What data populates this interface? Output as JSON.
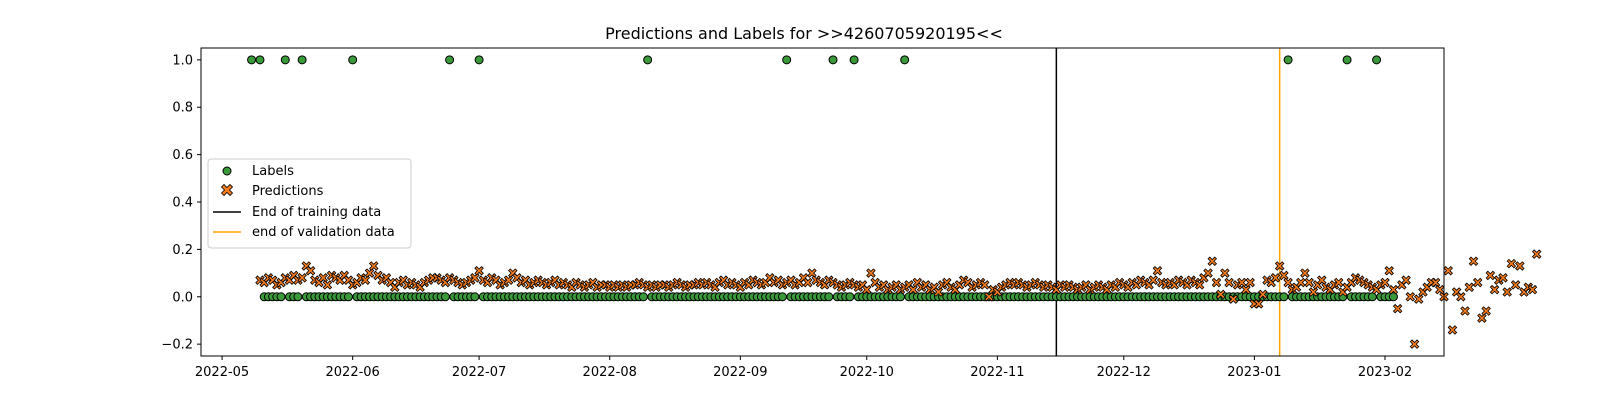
{
  "chart_data": {
    "type": "scatter",
    "title": "Predictions and Labels for >>4260705920195<<",
    "xlabel": "",
    "ylabel": "",
    "x_range": [
      "2022-04-26",
      "2023-02-15"
    ],
    "ylim": [
      -0.25,
      1.05
    ],
    "x_ticks": [
      "2022-05",
      "2022-06",
      "2022-07",
      "2022-08",
      "2022-09",
      "2022-10",
      "2022-11",
      "2022-12",
      "2023-01",
      "2023-02"
    ],
    "x_tick_dates": [
      "2022-05-01",
      "2022-06-01",
      "2022-07-01",
      "2022-08-01",
      "2022-09-01",
      "2022-10-01",
      "2022-11-01",
      "2022-12-01",
      "2023-01-01",
      "2023-02-01"
    ],
    "y_ticks": [
      "−0.2",
      "0.0",
      "0.2",
      "0.4",
      "0.6",
      "0.8",
      "1.0"
    ],
    "y_tick_values": [
      -0.2,
      0.0,
      0.2,
      0.4,
      0.6,
      0.8,
      1.0
    ],
    "grid": false,
    "legend_position": "center-left",
    "legend": [
      "Labels",
      "Predictions",
      "End of training data",
      "end of validation data"
    ],
    "colors": {
      "labels_fill": "#3a9a3a",
      "predictions_fill": "#f57c1f",
      "marker_edge": "#000000",
      "training_line": "#000000",
      "validation_line": "#ffa500"
    },
    "date_range": {
      "start": "2022-05-10",
      "end": "2023-02-03"
    },
    "label_ones": [
      "2022-05-08",
      "2022-05-10",
      "2022-05-16",
      "2022-05-20",
      "2022-06-01",
      "2022-06-24",
      "2022-07-01",
      "2022-08-10",
      "2022-09-12",
      "2022-09-23",
      "2022-09-28",
      "2022-10-10",
      "2023-01-09",
      "2023-01-23",
      "2023-01-30"
    ],
    "predictions_train": [
      0.07,
      0.06,
      0.08,
      0.07,
      0.05,
      0.06,
      0.08,
      0.07,
      0.09,
      0.07,
      0.08,
      0.13,
      0.11,
      0.07,
      0.06,
      0.08,
      0.05,
      0.09,
      0.08,
      0.07,
      0.09,
      0.07,
      0.05,
      0.06,
      0.08,
      0.07,
      0.1,
      0.13,
      0.09,
      0.07,
      0.08,
      0.06,
      0.04,
      0.06,
      0.07,
      0.05,
      0.06,
      0.05,
      0.04,
      0.06,
      0.07,
      0.08,
      0.08,
      0.07,
      0.06,
      0.08,
      0.07,
      0.06,
      0.05,
      0.06,
      0.07,
      0.08,
      0.11,
      0.07,
      0.06,
      0.08,
      0.07,
      0.05,
      0.06,
      0.07,
      0.1,
      0.08,
      0.06,
      0.07,
      0.05,
      0.06,
      0.07,
      0.06,
      0.05,
      0.06,
      0.07,
      0.05,
      0.06,
      0.05,
      0.04,
      0.06,
      0.05,
      0.04,
      0.05,
      0.06,
      0.04,
      0.05,
      0.05,
      0.04,
      0.05,
      0.04,
      0.05,
      0.04,
      0.05,
      0.05,
      0.06,
      0.05,
      0.04,
      0.05,
      0.04,
      0.05,
      0.05,
      0.04,
      0.05,
      0.06,
      0.05,
      0.04,
      0.05,
      0.05,
      0.06,
      0.05,
      0.06,
      0.05,
      0.04,
      0.06,
      0.07,
      0.05,
      0.06,
      0.05,
      0.04,
      0.06,
      0.05,
      0.07,
      0.06,
      0.05,
      0.06,
      0.08,
      0.06,
      0.07,
      0.05,
      0.06,
      0.07,
      0.05,
      0.06,
      0.08,
      0.06,
      0.1,
      0.07,
      0.06,
      0.05,
      0.07,
      0.06,
      0.05,
      0.04,
      0.05,
      0.06,
      0.05,
      0.04,
      0.05,
      0.03,
      0.1,
      0.06,
      0.04,
      0.05,
      0.03,
      0.04,
      0.05,
      0.03,
      0.04,
      0.05,
      0.03,
      0.06,
      0.04,
      0.05,
      0.03,
      0.04,
      0.02,
      0.05,
      0.06,
      0.04,
      0.03,
      0.05,
      0.07,
      0.06,
      0.04,
      0.05,
      0.06,
      0.05,
      0.0,
      0.03,
      0.02,
      0.04,
      0.05,
      0.06,
      0.05,
      0.06,
      0.05,
      0.04,
      0.05,
      0.06,
      0.05,
      0.04,
      0.05,
      0.04,
      0.03,
      0.05,
      0.04,
      0.05,
      0.04,
      0.03,
      0.04,
      0.05,
      0.03,
      0.04,
      0.05,
      0.04,
      0.03,
      0.05,
      0.04,
      0.06,
      0.05,
      0.04,
      0.06,
      0.05,
      0.07,
      0.06,
      0.05,
      0.07,
      0.11,
      0.06,
      0.05,
      0.06,
      0.05,
      0.07,
      0.06,
      0.05,
      0.07,
      0.06,
      0.05,
      0.08
    ],
    "predictions_post": [
      0.1,
      0.15,
      0.06,
      0.01,
      0.1,
      0.06,
      -0.01,
      0.05,
      0.06,
      0.03,
      0.06,
      -0.03,
      -0.03,
      0.01,
      0.07,
      0.06,
      0.08,
      0.13,
      0.09,
      0.06,
      0.03,
      0.04,
      0.06,
      0.1,
      0.06,
      0.02,
      0.05,
      0.07,
      0.04,
      0.03,
      0.05,
      0.06,
      0.02,
      0.04,
      0.06,
      0.08,
      0.07,
      0.06,
      0.05,
      0.04,
      0.03,
      0.05,
      0.06,
      0.11,
      0.03,
      -0.05,
      0.05,
      0.07,
      0.0,
      -0.2,
      -0.01,
      0.02,
      0.04,
      0.06,
      0.06,
      0.03,
      0.0,
      0.11,
      -0.14,
      0.02,
      0.0,
      -0.06,
      0.04,
      0.15,
      0.06,
      -0.09,
      -0.06,
      0.09,
      0.03,
      0.07,
      0.08,
      0.02,
      0.14,
      0.05,
      0.13,
      0.02,
      0.04,
      0.03,
      0.18
    ],
    "end_of_training": "2022-11-15",
    "end_of_validation": "2023-01-07"
  }
}
